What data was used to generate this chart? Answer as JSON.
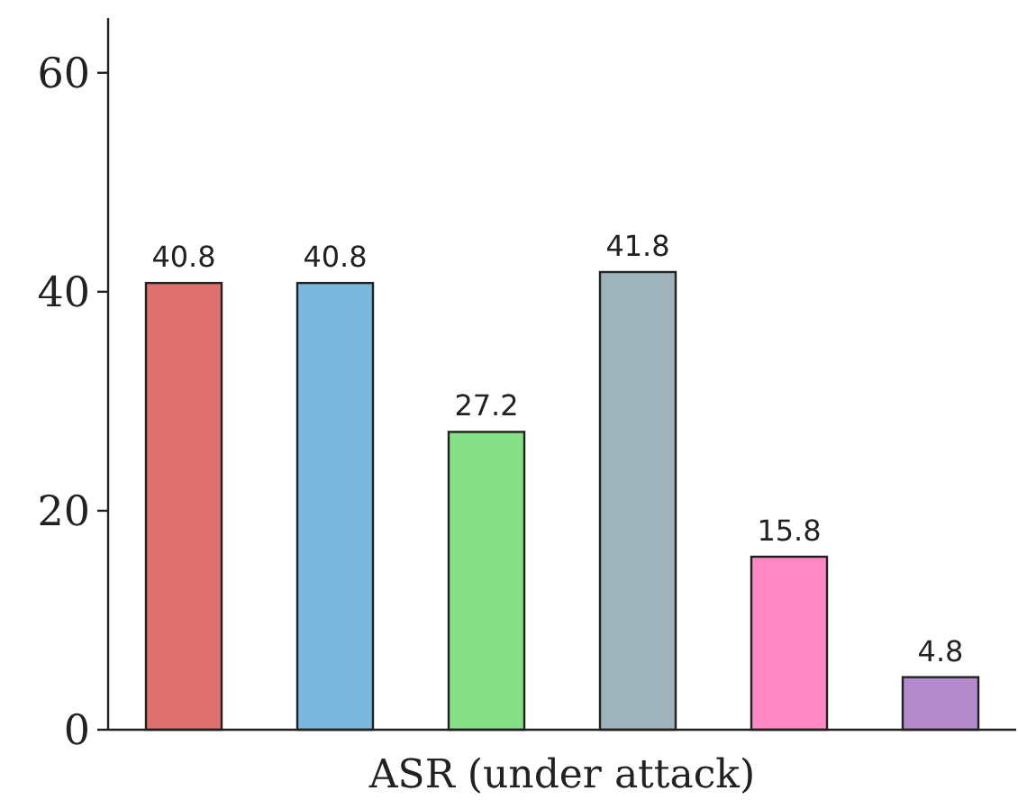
{
  "chart_data": {
    "type": "bar",
    "xlabel": "ASR (under attack)",
    "categories": [
      null,
      null,
      null,
      null,
      null,
      null
    ],
    "values": [
      40.8,
      40.8,
      27.2,
      41.8,
      15.8,
      4.8
    ],
    "colors": [
      "#e07070",
      "#7ab8e0",
      "#86e085",
      "#9fb3bd",
      "#ff88c2",
      "#b48acc"
    ],
    "data_labels": true,
    "ylim": [
      0,
      65
    ],
    "yticks": [
      0,
      20,
      40,
      60
    ]
  }
}
